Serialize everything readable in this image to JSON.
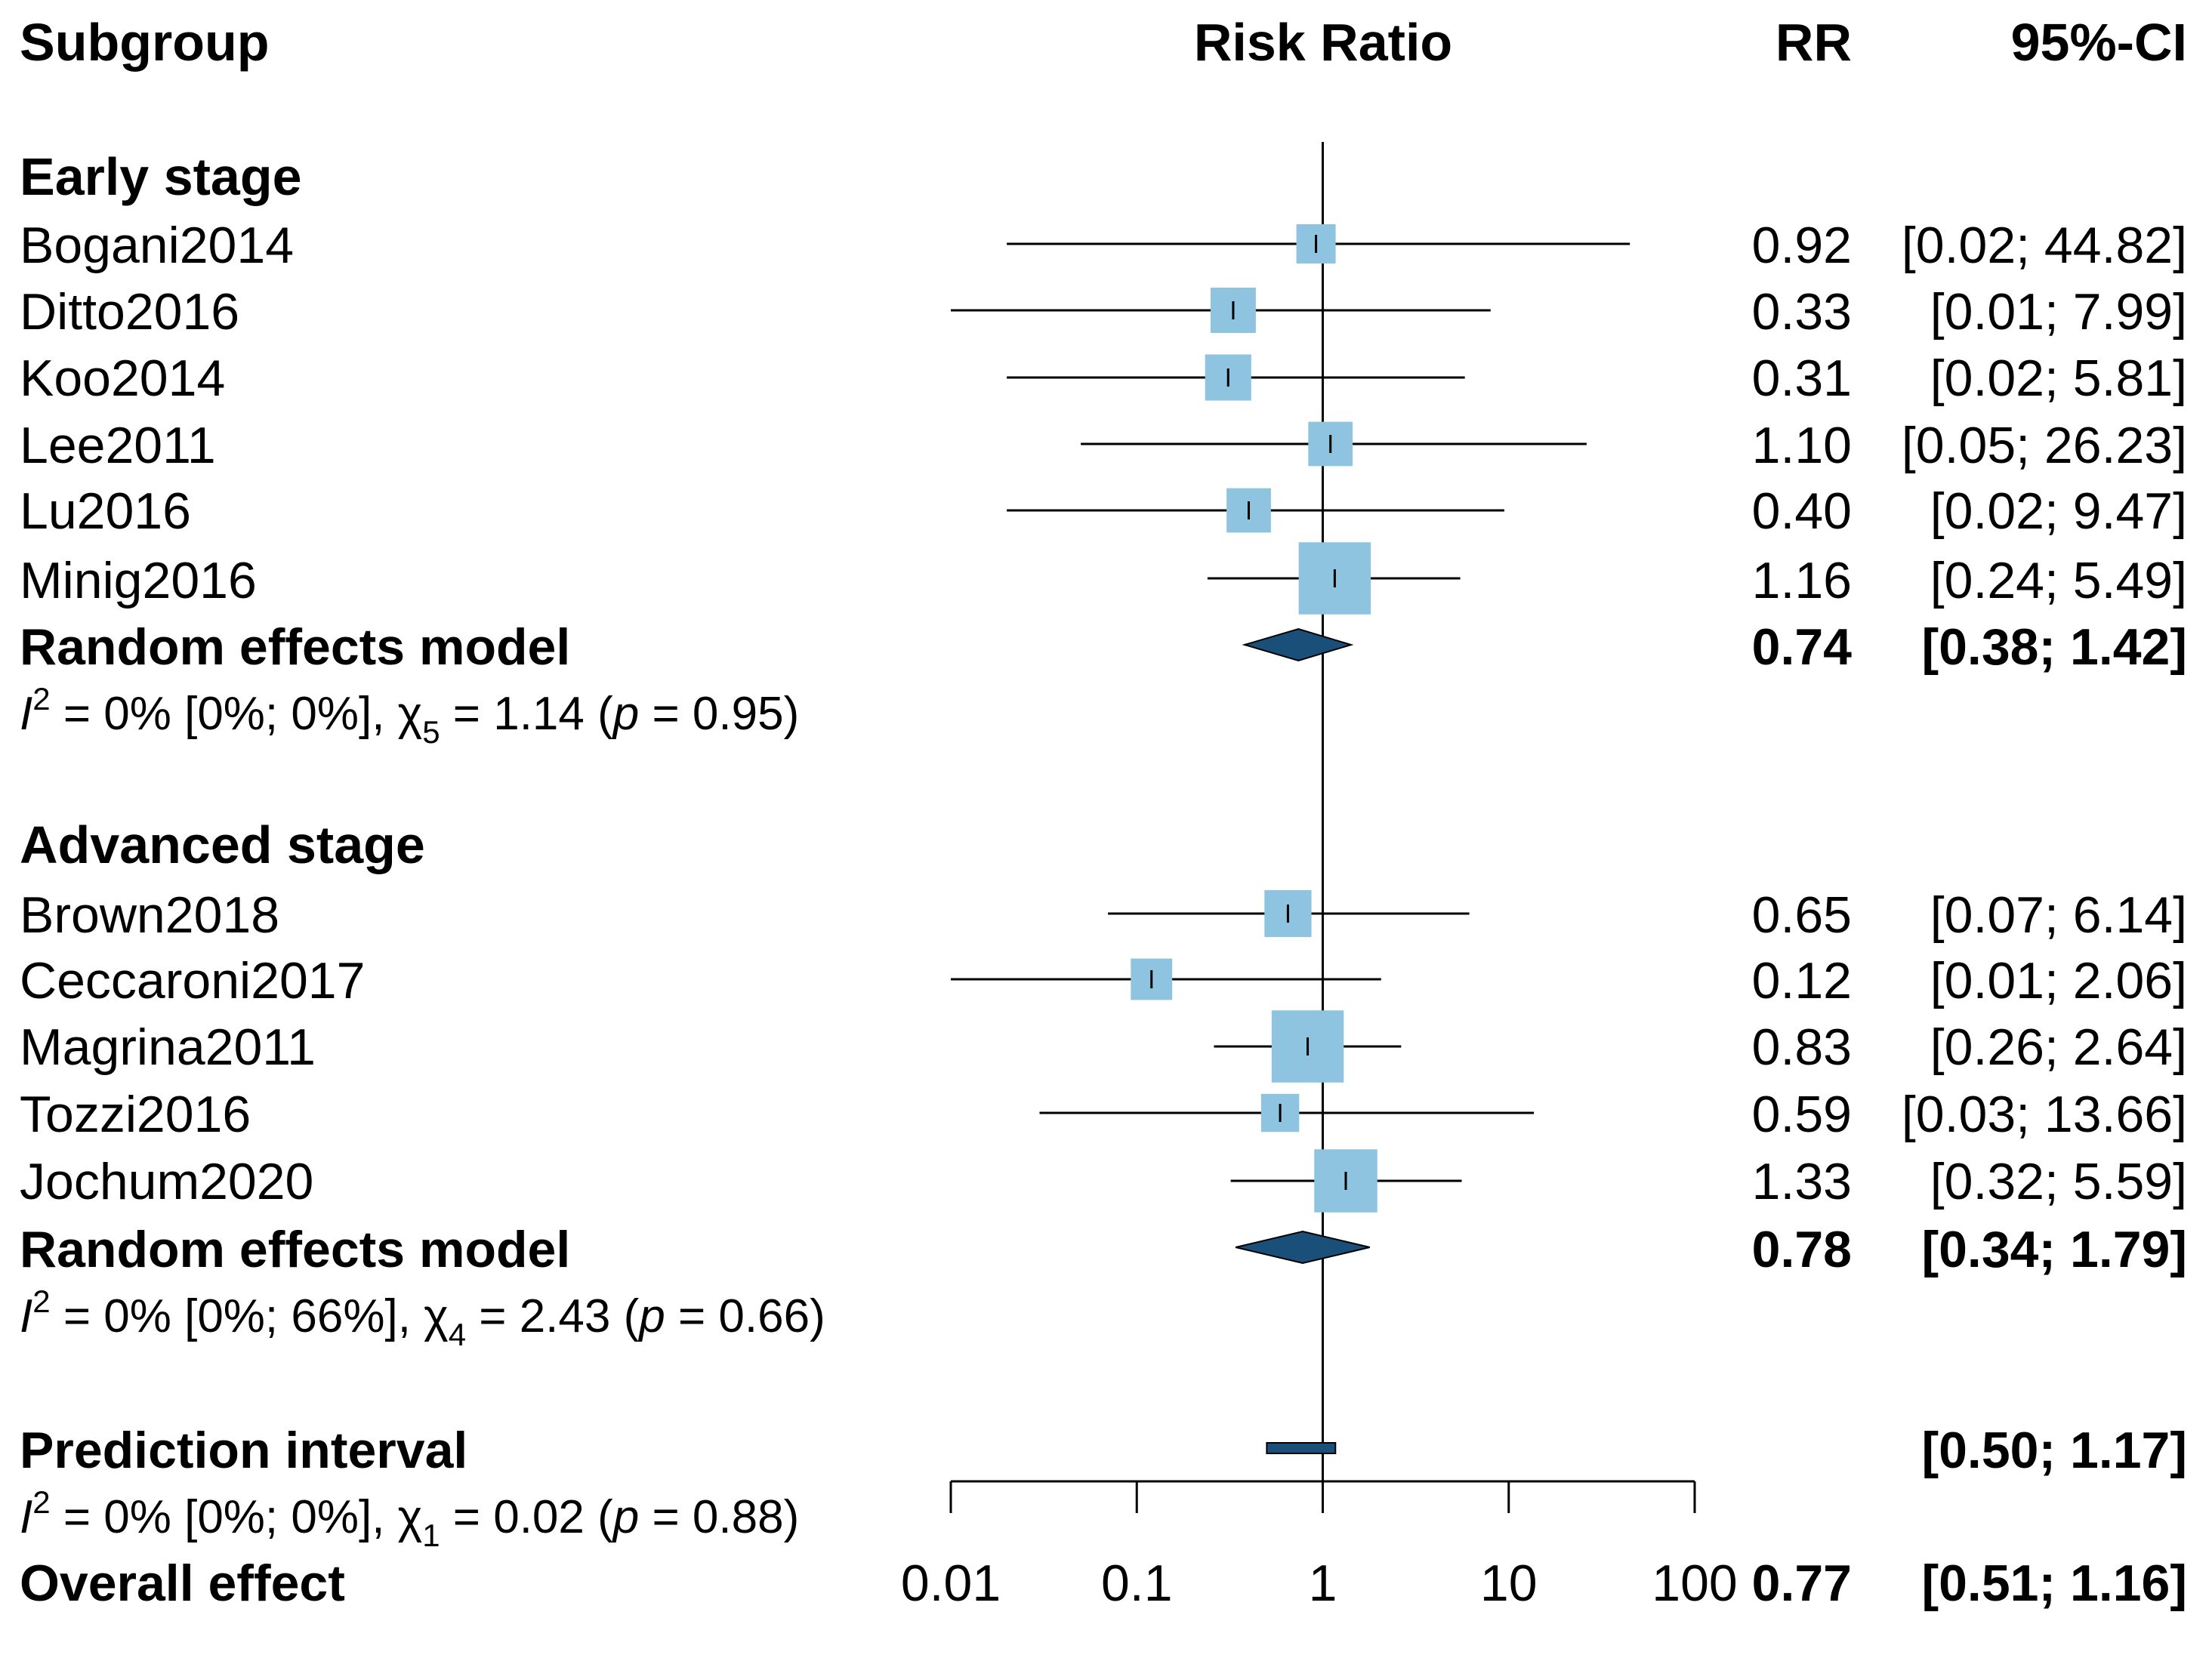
{
  "chart_data": {
    "type": "forest",
    "measure": "Risk Ratio",
    "x_scale": "log",
    "xlim": [
      0.01,
      100
    ],
    "reference_line": 1,
    "headers": {
      "subgroup": "Subgroup",
      "plot": "Risk Ratio",
      "rr": "RR",
      "ci": "95%-CI"
    },
    "x_ticks": [
      {
        "value": 0.01,
        "label": "0.01"
      },
      {
        "value": 0.1,
        "label": "0.1"
      },
      {
        "value": 1,
        "label": "1"
      },
      {
        "value": 10,
        "label": "10"
      },
      {
        "value": 100,
        "label": "100"
      }
    ],
    "colors": {
      "box": "#8ec4e0",
      "diamond": "#1a4f7a",
      "line": "#000000"
    },
    "groups": [
      {
        "title": "Early stage",
        "studies": [
          {
            "name": "Bogani2014",
            "rr": 0.92,
            "lo": 0.02,
            "hi": 44.82,
            "rr_text": "0.92",
            "ci_text": "[0.02; 44.82]",
            "weight": 1.0
          },
          {
            "name": "Ditto2016",
            "rr": 0.33,
            "lo": 0.01,
            "hi": 7.99,
            "rr_text": "0.33",
            "ci_text": "[0.01; 7.99]",
            "weight": 1.6
          },
          {
            "name": "Koo2014",
            "rr": 0.31,
            "lo": 0.02,
            "hi": 5.81,
            "rr_text": "0.31",
            "ci_text": "[0.02; 5.81]",
            "weight": 1.7
          },
          {
            "name": "Lee2011",
            "rr": 1.1,
            "lo": 0.05,
            "hi": 26.23,
            "rr_text": "1.10",
            "ci_text": "[0.05; 26.23]",
            "weight": 1.5
          },
          {
            "name": "Lu2016",
            "rr": 0.4,
            "lo": 0.02,
            "hi": 9.47,
            "rr_text": "0.40",
            "ci_text": "[0.02; 9.47]",
            "weight": 1.5
          },
          {
            "name": "Minig2016",
            "rr": 1.16,
            "lo": 0.24,
            "hi": 5.49,
            "rr_text": "1.16",
            "ci_text": "[0.24; 5.49]",
            "weight": 6.0
          }
        ],
        "model": {
          "label": "Random effects model",
          "rr": 0.74,
          "lo": 0.38,
          "hi": 1.42,
          "rr_text": "0.74",
          "ci_text": "[0.38; 1.42]"
        },
        "heterogeneity": {
          "pre": "I",
          "sup": "2",
          "stats": " = 0% [0%; 0%], χ",
          "df": "5",
          "q": " = 1.14 (",
          "p": "p",
          "pval": " = 0.95)"
        }
      },
      {
        "title": "Advanced stage",
        "studies": [
          {
            "name": "Brown2018",
            "rr": 0.65,
            "lo": 0.07,
            "hi": 6.14,
            "rr_text": "0.65",
            "ci_text": "[0.07; 6.14]",
            "weight": 1.8
          },
          {
            "name": "Ceccaroni2017",
            "rr": 0.12,
            "lo": 0.01,
            "hi": 2.06,
            "rr_text": "0.12",
            "ci_text": "[0.01; 2.06]",
            "weight": 1.2
          },
          {
            "name": "Magrina2011",
            "rr": 0.83,
            "lo": 0.26,
            "hi": 2.64,
            "rr_text": "0.83",
            "ci_text": "[0.26; 2.64]",
            "weight": 6.0
          },
          {
            "name": "Tozzi2016",
            "rr": 0.59,
            "lo": 0.03,
            "hi": 13.66,
            "rr_text": "0.59",
            "ci_text": "[0.03; 13.66]",
            "weight": 0.9
          },
          {
            "name": "Jochum2020",
            "rr": 1.33,
            "lo": 0.32,
            "hi": 5.59,
            "rr_text": "1.33",
            "ci_text": "[0.32; 5.59]",
            "weight": 4.2
          }
        ],
        "model": {
          "label": "Random effects model",
          "rr": 0.78,
          "lo": 0.34,
          "hi": 1.79,
          "rr_text": "0.78",
          "ci_text": "[0.34; 1.79]"
        },
        "heterogeneity": {
          "pre": "I",
          "sup": "2",
          "stats": " = 0% [0%; 66%], χ",
          "df": "4",
          "q": " = 2.43 (",
          "p": "p",
          "pval": " = 0.66)"
        }
      }
    ],
    "prediction_interval": {
      "label": "Prediction interval",
      "lo": 0.5,
      "hi": 1.17,
      "ci_text": "[0.50; 1.17]"
    },
    "test_subgroups": {
      "pre": "I",
      "sup": "2",
      "stats": " = 0% [0%; 0%], χ",
      "df": "1",
      "q": " = 0.02 (",
      "p": "p",
      "pval": " = 0.88)"
    },
    "overall": {
      "label": "Overall effect",
      "rr": 0.77,
      "lo": 0.51,
      "hi": 1.16,
      "rr_text": "0.77",
      "ci_text": "[0.51; 1.16]"
    }
  }
}
